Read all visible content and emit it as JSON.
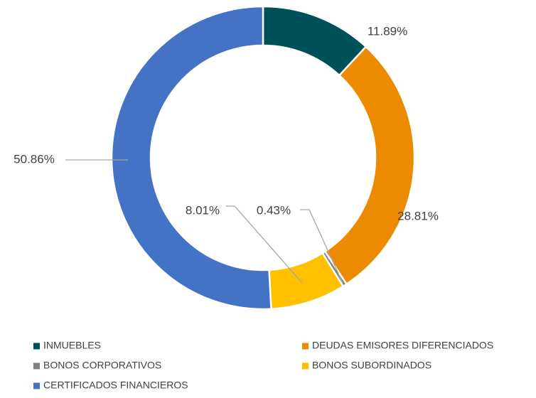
{
  "chart_data": {
    "type": "donut",
    "categories": [
      "INMUEBLES",
      "DEUDAS EMISORES DIFERENCIADOS",
      "BONOS CORPORATIVOS",
      "BONOS SUBORDINADOS",
      "CERTIFICADOS FINANCIEROS"
    ],
    "values": [
      11.89,
      28.81,
      0.43,
      8.01,
      50.86
    ],
    "value_labels": [
      "11.89%",
      "28.81%",
      "0.43%",
      "8.01%",
      "50.86%"
    ],
    "colors": [
      "#00505a",
      "#ec8b00",
      "#808080",
      "#ffc000",
      "#4472c4"
    ],
    "legend": "bottom"
  }
}
